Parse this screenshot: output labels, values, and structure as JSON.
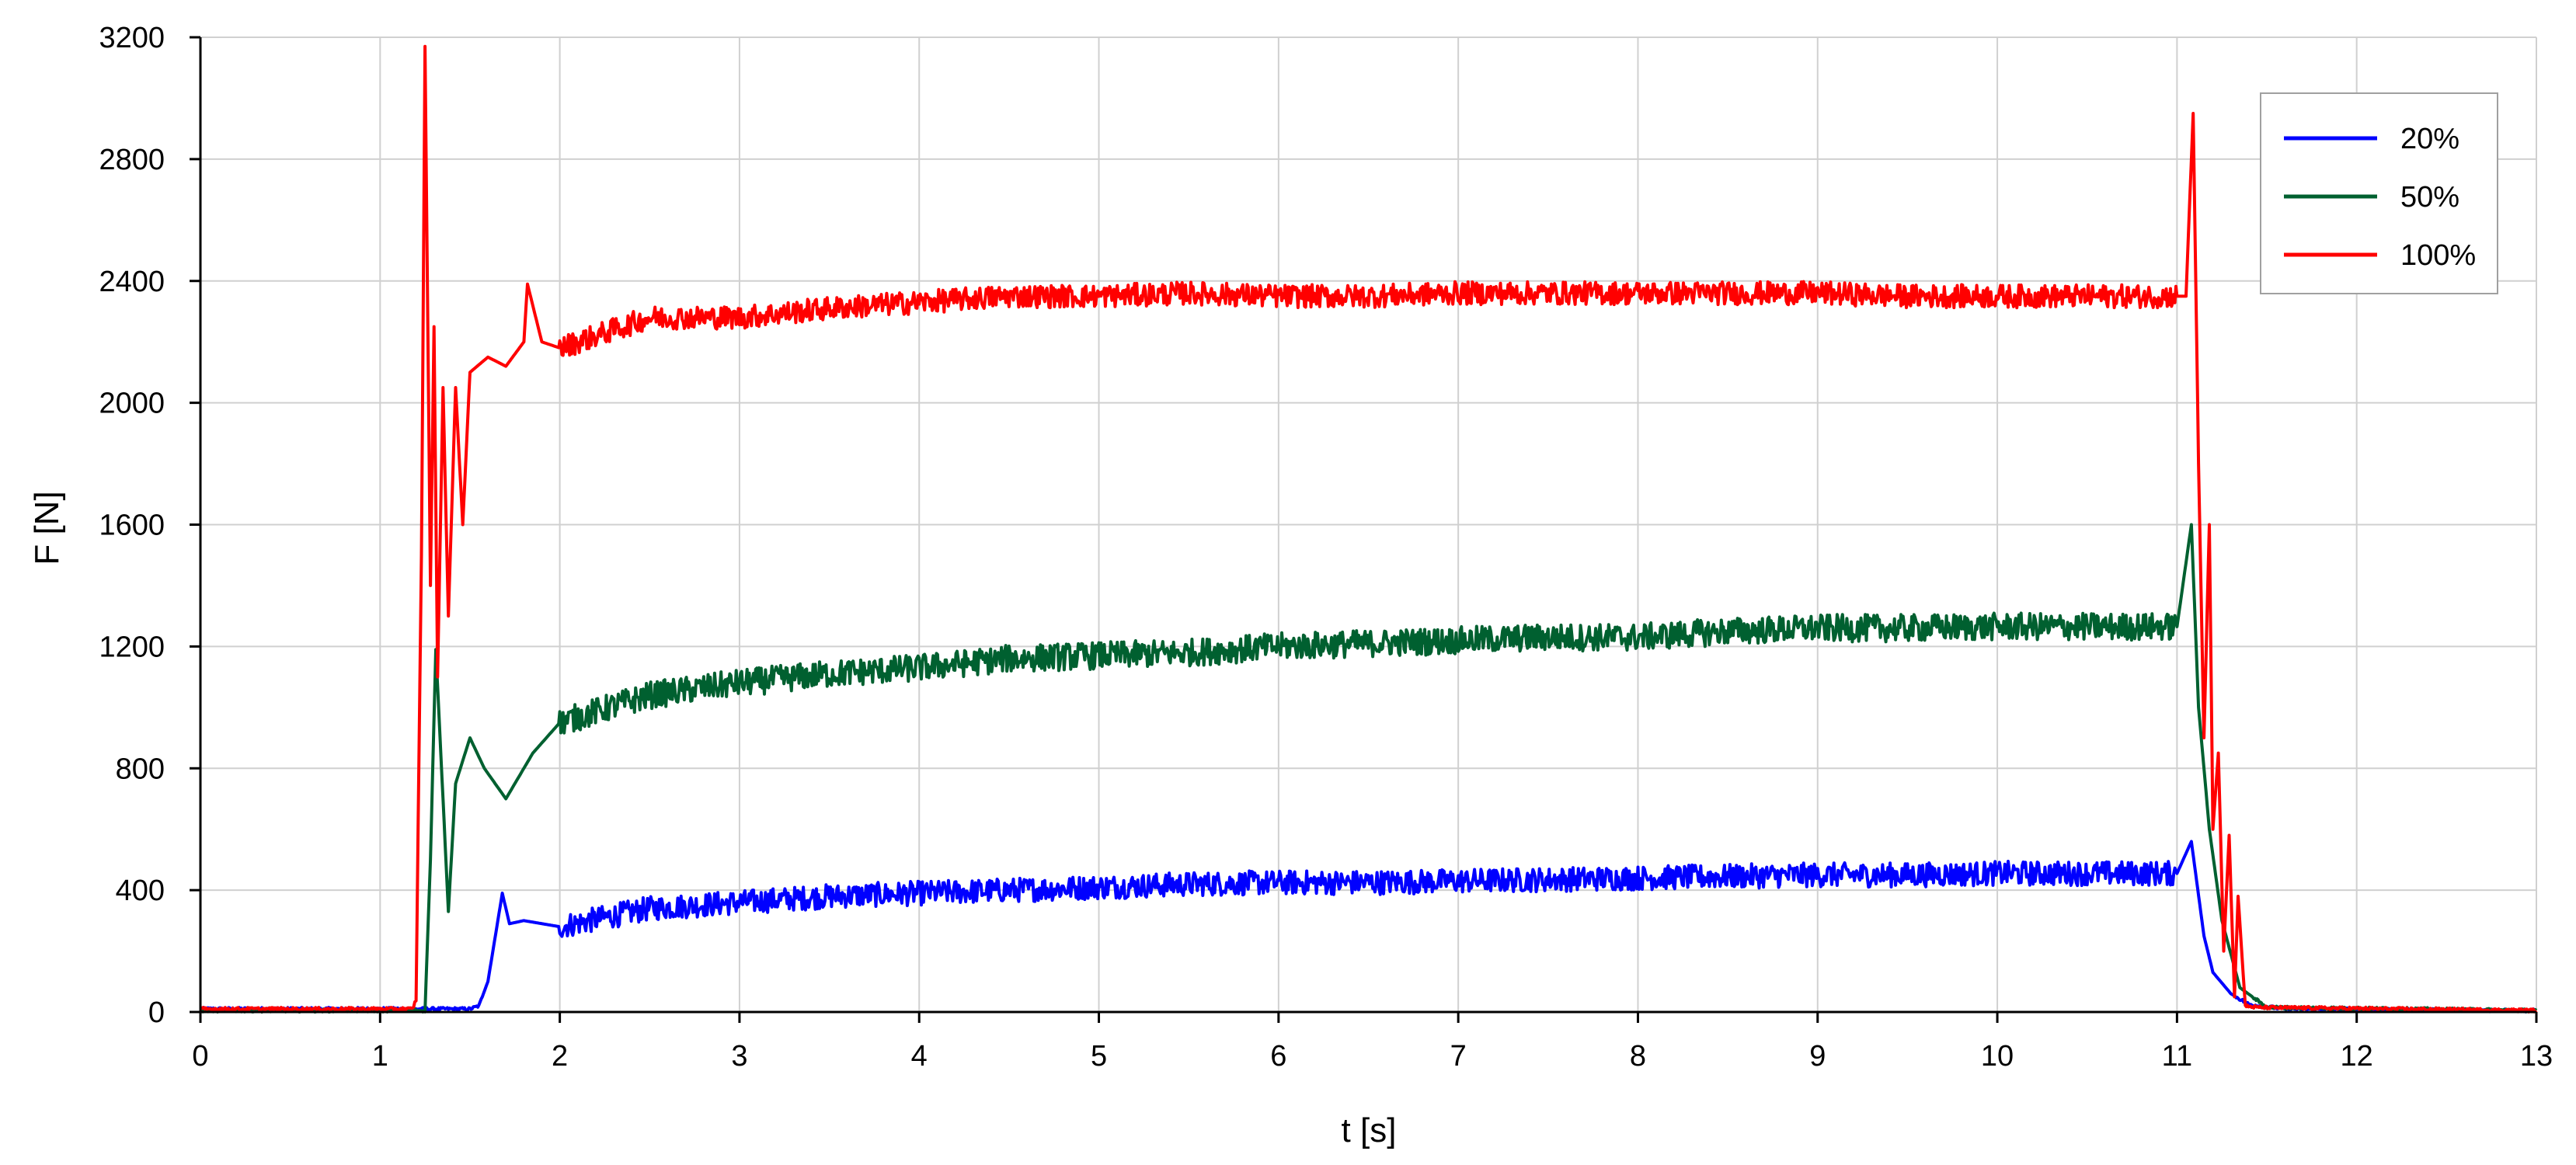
{
  "chart_data": {
    "type": "line",
    "title": "",
    "xlabel": "t [s]",
    "ylabel": "F [N]",
    "xlim": [
      0,
      13
    ],
    "ylim": [
      0,
      3200
    ],
    "x_ticks": [
      0,
      1,
      2,
      3,
      4,
      5,
      6,
      7,
      8,
      9,
      10,
      11,
      12,
      13
    ],
    "y_ticks": [
      0,
      400,
      800,
      1200,
      1600,
      2000,
      2400,
      2800,
      3200
    ],
    "grid": true,
    "legend_position": "top-right",
    "series": [
      {
        "name": "20%",
        "color": "#0000ff",
        "points": [
          [
            0,
            10
          ],
          [
            1.5,
            10
          ],
          [
            1.55,
            20
          ],
          [
            1.6,
            100
          ],
          [
            1.68,
            390
          ],
          [
            1.72,
            290
          ],
          [
            1.8,
            300
          ],
          [
            2,
            280
          ],
          [
            2.5,
            340
          ],
          [
            3,
            360
          ],
          [
            3.5,
            380
          ],
          [
            4,
            390
          ],
          [
            4.5,
            400
          ],
          [
            5,
            410
          ],
          [
            5.5,
            420
          ],
          [
            6,
            425
          ],
          [
            6.5,
            425
          ],
          [
            7,
            430
          ],
          [
            7.5,
            435
          ],
          [
            8,
            440
          ],
          [
            8.5,
            445
          ],
          [
            9,
            450
          ],
          [
            9.5,
            450
          ],
          [
            10,
            455
          ],
          [
            10.5,
            455
          ],
          [
            11,
            455
          ],
          [
            11.08,
            560
          ],
          [
            11.15,
            250
          ],
          [
            11.2,
            130
          ],
          [
            11.3,
            60
          ],
          [
            11.4,
            25
          ],
          [
            11.6,
            10
          ],
          [
            13,
            5
          ]
        ]
      },
      {
        "name": "50%",
        "color": "#006030",
        "points": [
          [
            0,
            5
          ],
          [
            1.25,
            5
          ],
          [
            1.28,
            500
          ],
          [
            1.31,
            1190
          ],
          [
            1.35,
            700
          ],
          [
            1.38,
            330
          ],
          [
            1.42,
            750
          ],
          [
            1.5,
            900
          ],
          [
            1.58,
            800
          ],
          [
            1.7,
            700
          ],
          [
            1.85,
            850
          ],
          [
            2,
            950
          ],
          [
            2.5,
            1040
          ],
          [
            3,
            1080
          ],
          [
            3.5,
            1110
          ],
          [
            4,
            1130
          ],
          [
            4.5,
            1160
          ],
          [
            5,
            1170
          ],
          [
            5.5,
            1180
          ],
          [
            6,
            1200
          ],
          [
            6.5,
            1210
          ],
          [
            7,
            1220
          ],
          [
            7.5,
            1230
          ],
          [
            8,
            1230
          ],
          [
            8.5,
            1250
          ],
          [
            9,
            1260
          ],
          [
            9.5,
            1260
          ],
          [
            10,
            1265
          ],
          [
            10.5,
            1265
          ],
          [
            11,
            1265
          ],
          [
            11.08,
            1600
          ],
          [
            11.12,
            1000
          ],
          [
            11.18,
            600
          ],
          [
            11.25,
            300
          ],
          [
            11.35,
            80
          ],
          [
            11.5,
            15
          ],
          [
            13,
            5
          ]
        ]
      },
      {
        "name": "100%",
        "color": "#ff0000",
        "points": [
          [
            0,
            10
          ],
          [
            1.18,
            10
          ],
          [
            1.2,
            40
          ],
          [
            1.23,
            1500
          ],
          [
            1.25,
            3170
          ],
          [
            1.28,
            1400
          ],
          [
            1.3,
            2250
          ],
          [
            1.32,
            1100
          ],
          [
            1.35,
            2050
          ],
          [
            1.38,
            1300
          ],
          [
            1.42,
            2050
          ],
          [
            1.46,
            1600
          ],
          [
            1.5,
            2100
          ],
          [
            1.6,
            2150
          ],
          [
            1.7,
            2120
          ],
          [
            1.8,
            2200
          ],
          [
            1.82,
            2390
          ],
          [
            1.9,
            2200
          ],
          [
            2,
            2180
          ],
          [
            2.5,
            2280
          ],
          [
            3,
            2280
          ],
          [
            3.5,
            2310
          ],
          [
            4,
            2330
          ],
          [
            4.5,
            2350
          ],
          [
            5,
            2350
          ],
          [
            5.5,
            2360
          ],
          [
            6,
            2350
          ],
          [
            6.5,
            2350
          ],
          [
            7,
            2360
          ],
          [
            7.5,
            2360
          ],
          [
            8,
            2360
          ],
          [
            8.5,
            2360
          ],
          [
            9,
            2360
          ],
          [
            9.5,
            2350
          ],
          [
            10,
            2350
          ],
          [
            10.5,
            2350
          ],
          [
            11,
            2350
          ],
          [
            11.05,
            2350
          ],
          [
            11.09,
            2950
          ],
          [
            11.12,
            1800
          ],
          [
            11.15,
            900
          ],
          [
            11.18,
            1600
          ],
          [
            11.2,
            600
          ],
          [
            11.23,
            850
          ],
          [
            11.26,
            200
          ],
          [
            11.29,
            580
          ],
          [
            11.32,
            50
          ],
          [
            11.34,
            380
          ],
          [
            11.38,
            20
          ],
          [
            11.45,
            15
          ],
          [
            13,
            5
          ]
        ]
      }
    ]
  }
}
